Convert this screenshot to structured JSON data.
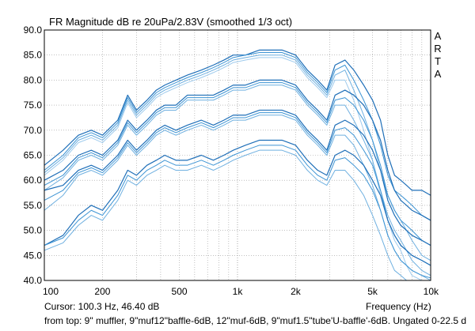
{
  "chart_data": {
    "type": "line",
    "title": "FR Magnitude dB re 20uPa/2.83V (smoothed 1/3 oct)",
    "xlabel": "Frequency (Hz)",
    "ylabel": "",
    "x_scale": "log",
    "xlim": [
      100,
      10000
    ],
    "ylim": [
      40,
      90
    ],
    "y_ticks": [
      "40.0",
      "45.0",
      "50.0",
      "55.0",
      "60.0",
      "65.0",
      "70.0",
      "75.0",
      "80.0",
      "85.0",
      "90.0"
    ],
    "x_ticks": [
      {
        "v": 100,
        "label": "100"
      },
      {
        "v": 200,
        "label": "200"
      },
      {
        "v": 500,
        "label": "500"
      },
      {
        "v": 1000,
        "label": "1k"
      },
      {
        "v": 2000,
        "label": "2k"
      },
      {
        "v": 5000,
        "label": "5k"
      },
      {
        "v": 10000,
        "label": "10k"
      }
    ],
    "grid": true,
    "brand_letters": [
      "A",
      "R",
      "T",
      "A"
    ],
    "x": [
      100,
      125,
      150,
      175,
      200,
      240,
      270,
      300,
      340,
      380,
      420,
      480,
      550,
      650,
      750,
      850,
      950,
      1100,
      1300,
      1500,
      1700,
      2000,
      2300,
      2600,
      2900,
      3200,
      3600,
      4000,
      4500,
      5000,
      5500,
      6000,
      6500,
      7000,
      7500,
      8000,
      9000,
      10000
    ],
    "series": [
      {
        "group": 1,
        "color": "#1f6fb8",
        "width": 1.2,
        "values": [
          63,
          66,
          69,
          70,
          69,
          72,
          77,
          74,
          76,
          78,
          79,
          80,
          81,
          82,
          83,
          84,
          85,
          85,
          86,
          86,
          86,
          85,
          82,
          80,
          78,
          83,
          84,
          82,
          79,
          76,
          72,
          65,
          61,
          60,
          59,
          58,
          58,
          57
        ]
      },
      {
        "group": 1,
        "color": "#3d94d4",
        "width": 1.0,
        "values": [
          62,
          65,
          68.5,
          69.5,
          68.5,
          71.5,
          76.5,
          73.5,
          75.5,
          77.5,
          78.5,
          79.5,
          80.5,
          81.5,
          82.5,
          83.5,
          84.5,
          85,
          85.5,
          85.5,
          85.5,
          84.5,
          81.5,
          79.5,
          77.5,
          82,
          83,
          80,
          76,
          72,
          67,
          61,
          58,
          57,
          56,
          55,
          53,
          52
        ]
      },
      {
        "group": 1,
        "color": "#6fb0e0",
        "width": 1.0,
        "values": [
          61.5,
          64.5,
          68,
          69,
          68,
          71,
          76,
          73,
          75,
          77,
          78,
          79,
          80,
          81,
          82,
          83,
          84,
          84.5,
          85,
          85,
          85,
          84,
          81,
          79,
          77,
          81,
          82,
          78,
          73,
          68,
          62,
          57,
          54,
          52,
          50,
          48,
          45,
          44
        ]
      },
      {
        "group": 1,
        "color": "#9fcbed",
        "width": 1.0,
        "values": [
          61,
          64,
          67.5,
          68.5,
          67.5,
          70.5,
          75.5,
          72.5,
          74.5,
          76.5,
          77.5,
          78.5,
          79.5,
          80.5,
          81.5,
          82.5,
          83.5,
          84,
          84.5,
          84.5,
          84.5,
          83.5,
          80.5,
          78.5,
          76.5,
          80,
          80,
          76,
          70,
          64,
          57,
          52,
          48,
          46,
          43,
          41,
          40,
          40
        ]
      },
      {
        "group": 2,
        "color": "#1f6fb8",
        "width": 1.2,
        "values": [
          60,
          62,
          65,
          66,
          65,
          68,
          72,
          70,
          72,
          74,
          75,
          75,
          77,
          77,
          77,
          78,
          79,
          79,
          80,
          80,
          80,
          79,
          76,
          74,
          72,
          77,
          78,
          77,
          75,
          72,
          68,
          62,
          58,
          56,
          55,
          54,
          53,
          52
        ]
      },
      {
        "group": 2,
        "color": "#3d94d4",
        "width": 1.0,
        "values": [
          59,
          61,
          64.5,
          65.5,
          64.5,
          67.5,
          71.5,
          69.5,
          71.5,
          73.5,
          74.5,
          74.5,
          76.5,
          76.5,
          76.5,
          77.5,
          78.5,
          78.5,
          79.5,
          79.5,
          79.5,
          78.5,
          75.5,
          73.5,
          71.5,
          76,
          76.5,
          75,
          72,
          68,
          63,
          57,
          54,
          52,
          51,
          50,
          48,
          47
        ]
      },
      {
        "group": 2,
        "color": "#6fb0e0",
        "width": 1.0,
        "values": [
          58,
          60.5,
          64,
          65,
          64,
          67,
          71,
          69,
          71,
          73,
          74,
          74,
          76,
          76,
          76,
          77,
          78,
          78,
          79,
          79,
          79,
          78,
          75,
          73,
          71,
          75,
          75,
          72,
          68,
          64,
          58,
          53,
          50,
          48,
          46,
          44,
          42,
          41
        ]
      },
      {
        "group": 3,
        "color": "#1f6fb8",
        "width": 1.2,
        "values": [
          58,
          59,
          62,
          63,
          62,
          65,
          68,
          66,
          68,
          70,
          71,
          70,
          71,
          72,
          71,
          72,
          73,
          73,
          74,
          74,
          74,
          73,
          70,
          68,
          66,
          71,
          72,
          71,
          69,
          66,
          62,
          56,
          53,
          51,
          50,
          49,
          48,
          47
        ]
      },
      {
        "group": 3,
        "color": "#3d94d4",
        "width": 1.0,
        "values": [
          56,
          58,
          61.5,
          62.5,
          61.5,
          64.5,
          67.5,
          65.5,
          67.5,
          69.5,
          70.5,
          69.5,
          70.5,
          71.5,
          70.5,
          71.5,
          72.5,
          72.5,
          73.5,
          73.5,
          73.5,
          72.5,
          69.5,
          67.5,
          65.5,
          70,
          70.5,
          69,
          66,
          63,
          58,
          52,
          49,
          47,
          46,
          45,
          44,
          43
        ]
      },
      {
        "group": 3,
        "color": "#6fb0e0",
        "width": 1.0,
        "values": [
          54,
          57,
          61,
          62,
          61,
          64,
          67,
          65,
          67,
          69,
          70,
          69,
          70,
          71,
          70,
          71,
          72,
          72,
          73,
          73,
          73,
          72,
          69,
          67,
          65,
          69,
          69,
          67,
          63,
          59,
          54,
          49,
          46,
          44,
          43,
          42,
          41,
          40
        ]
      },
      {
        "group": 4,
        "color": "#1f6fb8",
        "width": 1.2,
        "values": [
          47,
          49,
          53,
          55,
          54,
          58,
          62,
          61,
          63,
          64,
          65,
          64,
          64,
          65,
          64,
          65,
          66,
          67,
          68,
          68,
          68,
          67,
          64,
          62,
          61,
          65,
          66,
          65,
          63,
          60,
          57,
          52,
          49,
          47,
          46,
          45,
          44,
          43
        ]
      },
      {
        "group": 4,
        "color": "#3d94d4",
        "width": 1.0,
        "values": [
          47,
          48.5,
          52,
          54,
          53,
          57,
          61,
          60,
          62,
          63,
          64,
          63,
          63,
          64,
          63,
          64,
          65,
          66,
          67,
          67,
          67,
          66,
          63,
          61,
          60,
          64,
          64.5,
          63,
          61,
          58,
          54,
          49,
          46,
          44,
          43,
          42,
          41,
          40.5
        ]
      },
      {
        "group": 4,
        "color": "#6fb0e0",
        "width": 1.0,
        "values": [
          46,
          47.5,
          51,
          53,
          52,
          56,
          60,
          59,
          61,
          62,
          63,
          62,
          62,
          63,
          62,
          63,
          64,
          65,
          66,
          66,
          66,
          65,
          62,
          60,
          59,
          62,
          62,
          60,
          57,
          53,
          49,
          45,
          42,
          41,
          40,
          40,
          40,
          40
        ]
      }
    ]
  },
  "footer": {
    "cursor_text": "Cursor: 100.3 Hz, 46.40 dB",
    "legend_text": "from top: 9\" muffler, 9\"muf12\"baffle-6dB, 12\"muf-6dB, 9\"muf1.5\"tube'U-baffle'-6dB. Ungated 0-22.5 d"
  }
}
